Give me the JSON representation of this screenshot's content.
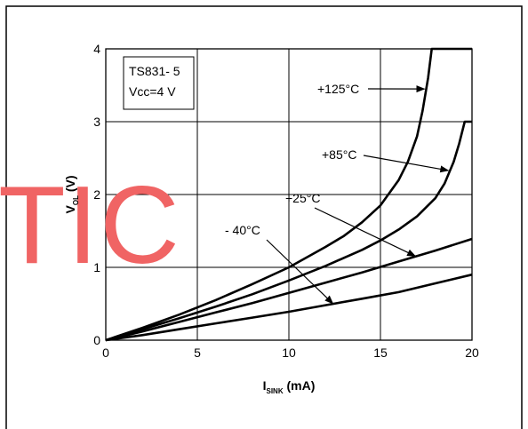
{
  "chart_data": {
    "type": "line",
    "x_ticks": [
      "0",
      "5",
      "10",
      "15",
      "20"
    ],
    "y_ticks": [
      "0",
      "1",
      "2",
      "3",
      "4"
    ],
    "xlim": [
      0,
      20
    ],
    "ylim": [
      0,
      4
    ],
    "grid": true,
    "ylabel": {
      "main": "V",
      "sub": "OL",
      "unit": " (V)"
    },
    "xlabel": {
      "main": "I",
      "sub": "SINK",
      "unit": " (mA)"
    },
    "condition_box": {
      "line1": "TS831- 5",
      "line2": "Vcc=4 V"
    },
    "series": [
      {
        "name": "+125°C",
        "x": [
          0,
          2,
          4,
          6,
          8,
          10,
          12,
          13,
          14,
          15,
          16,
          16.5,
          17,
          17.3,
          17.6,
          17.8,
          18,
          20
        ],
        "y": [
          0,
          0.17,
          0.35,
          0.55,
          0.77,
          1.0,
          1.28,
          1.43,
          1.62,
          1.85,
          2.2,
          2.45,
          2.8,
          3.15,
          3.6,
          4.0,
          4.0,
          4.0
        ]
      },
      {
        "name": "+85°C",
        "x": [
          0,
          2,
          4,
          6,
          8,
          10,
          12,
          14,
          15,
          16,
          17,
          18,
          18.5,
          19,
          19.3,
          19.6,
          19.8,
          20
        ],
        "y": [
          0,
          0.15,
          0.3,
          0.46,
          0.63,
          0.82,
          1.02,
          1.24,
          1.37,
          1.52,
          1.7,
          1.95,
          2.15,
          2.45,
          2.7,
          3.0,
          3.0,
          3.0
        ]
      },
      {
        "name": "+25°C",
        "x": [
          0,
          2,
          4,
          6,
          8,
          10,
          12,
          14,
          16,
          18,
          20
        ],
        "y": [
          0,
          0.12,
          0.25,
          0.38,
          0.51,
          0.65,
          0.79,
          0.93,
          1.08,
          1.23,
          1.39
        ]
      },
      {
        "name": "- 40°C",
        "x": [
          0,
          2,
          4,
          6,
          8,
          10,
          12,
          14,
          16,
          18,
          20
        ],
        "y": [
          0,
          0.07,
          0.15,
          0.23,
          0.31,
          0.39,
          0.48,
          0.57,
          0.66,
          0.78,
          0.9
        ]
      }
    ],
    "annotations": [
      {
        "text": "+125°C",
        "points_to_series": "+125°C",
        "at_x": 17.5
      },
      {
        "text": "+85°C",
        "points_to_series": "+85°C",
        "at_x": 18.8
      },
      {
        "text": "+25°C",
        "points_to_series": "+25°C",
        "at_x": 17
      },
      {
        "text": "- 40°C",
        "points_to_series": "- 40°C",
        "at_x": 12.5
      }
    ]
  },
  "watermark": "TIC",
  "colors": {
    "watermark": "#f06464",
    "line": "#000000",
    "grid": "#000000"
  }
}
